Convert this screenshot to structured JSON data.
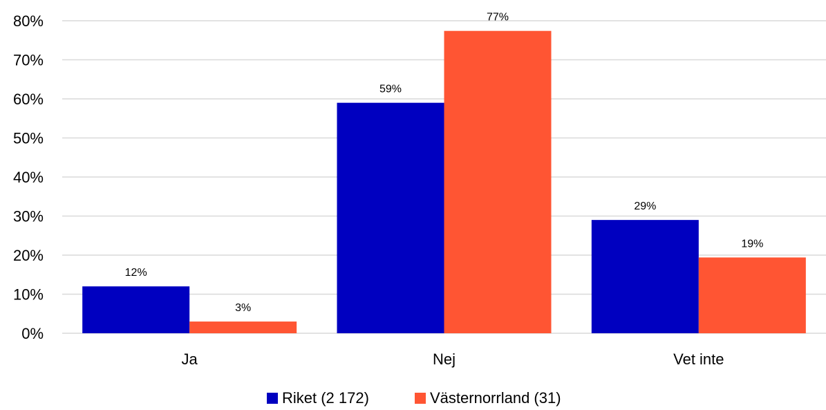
{
  "chart_data": {
    "type": "bar",
    "categories": [
      "Ja",
      "Nej",
      "Vet inte"
    ],
    "series": [
      {
        "name": "Riket (2 172)",
        "values": [
          12,
          59,
          29
        ],
        "labels": [
          "12%",
          "59%",
          "29%"
        ],
        "color": "#0000c0"
      },
      {
        "name": "Västernorrland (31)",
        "values": [
          3,
          77.4,
          19.4
        ],
        "labels": [
          "3%",
          "77%",
          "19%"
        ],
        "color": "#ff5533"
      }
    ],
    "ylim": [
      0,
      80
    ],
    "yticks": [
      0,
      10,
      20,
      30,
      40,
      50,
      60,
      70,
      80
    ],
    "ytick_labels": [
      "0%",
      "10%",
      "20%",
      "30%",
      "40%",
      "50%",
      "60%",
      "70%",
      "80%"
    ],
    "grid": true,
    "legend_position": "bottom-center"
  }
}
